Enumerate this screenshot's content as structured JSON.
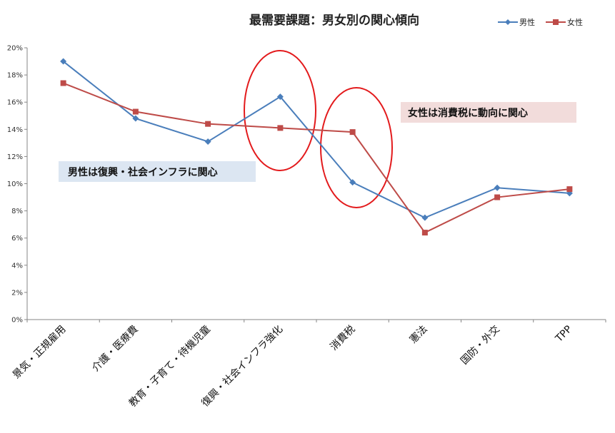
{
  "chart_data": {
    "type": "line",
    "title": "最需要課題：男女別の関心傾向",
    "categories": [
      "景気・正規雇用",
      "介護・医療費",
      "教育・子育て・待機児童",
      "復興・社会インフラ強化",
      "消費税",
      "憲法",
      "国防・外交",
      "TPP"
    ],
    "series": [
      {
        "name": "男性",
        "color": "#4a7ebb",
        "marker": "diamond",
        "values": [
          19.0,
          14.8,
          13.1,
          16.4,
          10.1,
          7.5,
          9.7,
          9.3
        ]
      },
      {
        "name": "女性",
        "color": "#be4b48",
        "marker": "square",
        "values": [
          17.4,
          15.3,
          14.4,
          14.1,
          13.8,
          6.4,
          9.0,
          9.6
        ]
      }
    ],
    "yticks": [
      "0%",
      "2%",
      "4%",
      "6%",
      "8%",
      "10%",
      "12%",
      "14%",
      "16%",
      "18%",
      "20%"
    ],
    "ylim": [
      0,
      20
    ],
    "grid": false,
    "legend_position": "top-right",
    "annotations": [
      {
        "text": "男性は復興・社会インフラに関心",
        "background": "#dce6f2"
      },
      {
        "text": "女性は消費税に動向に関心",
        "background": "#f2dcdb"
      }
    ],
    "highlight_ellipses": {
      "color": "#e31a1c",
      "around_categories": [
        "復興・社会インフラ強化",
        "消費税"
      ]
    }
  }
}
